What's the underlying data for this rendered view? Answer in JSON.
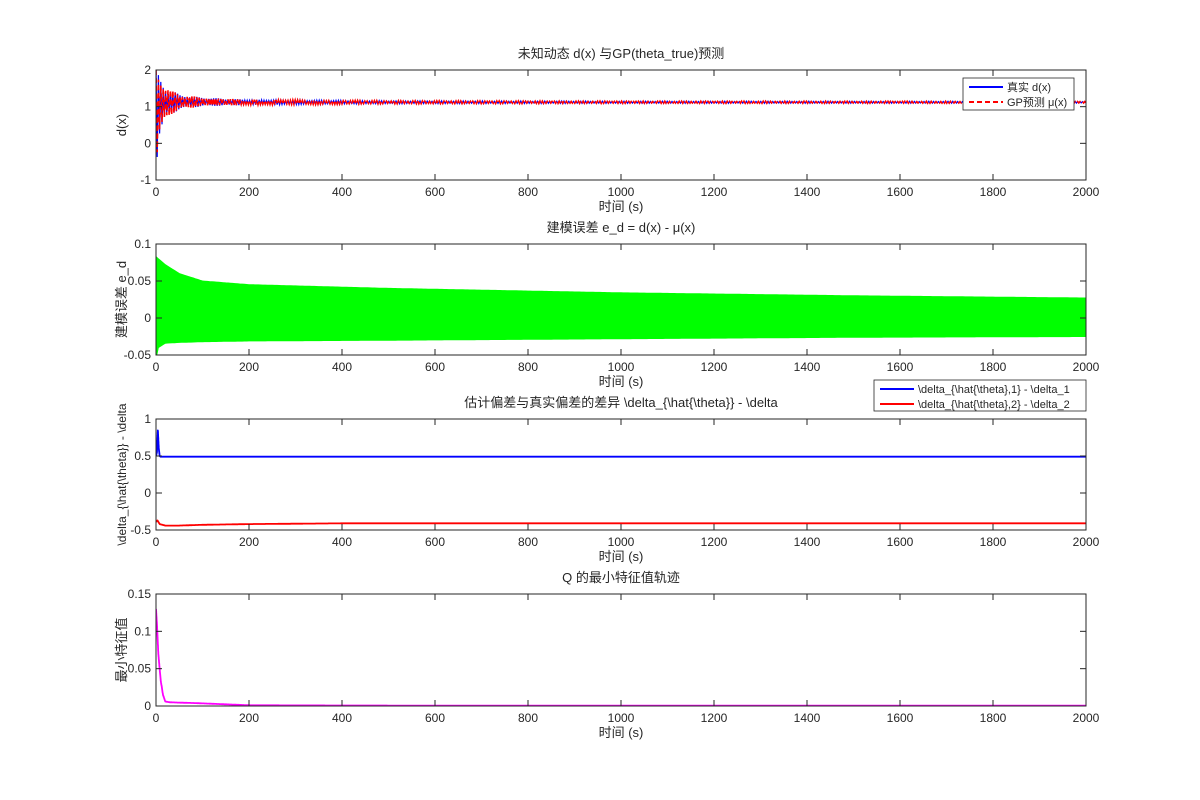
{
  "figure": {
    "background": "#ffffff",
    "axis_color": "#262626"
  },
  "chart_data": [
    {
      "type": "line",
      "title": "未知动态 d(x) 与GP(theta_true)预测",
      "xlabel": "时间 (s)",
      "ylabel": "d(x)",
      "xlim": [
        0,
        2000
      ],
      "ylim": [
        -1,
        2
      ],
      "xticks": [
        0,
        200,
        400,
        600,
        800,
        1000,
        1200,
        1400,
        1600,
        1800,
        2000
      ],
      "yticks": [
        -1,
        0,
        1,
        2
      ],
      "legend": {
        "position": "top-right",
        "entries": [
          "真实 d(x)",
          "GP预测 μ(x)"
        ]
      },
      "series": [
        {
          "name": "真实 d(x)",
          "color": "#0000ff",
          "style": "solid",
          "kind": "oscillation",
          "x": [
            0,
            5,
            20,
            50,
            100,
            200,
            500,
            1000,
            2000
          ],
          "center": [
            0.6,
            1.0,
            1.1,
            1.13,
            1.13,
            1.12,
            1.12,
            1.12,
            1.12
          ],
          "amplitude": [
            1.5,
            0.9,
            0.45,
            0.2,
            0.12,
            0.07,
            0.04,
            0.03,
            0.025
          ]
        },
        {
          "name": "GP预测 μ(x)",
          "color": "#ff0000",
          "style": "dashed",
          "kind": "oscillation",
          "x": [
            0,
            5,
            20,
            50,
            100,
            200,
            500,
            1000,
            2000
          ],
          "center": [
            0.6,
            1.0,
            1.1,
            1.13,
            1.13,
            1.12,
            1.12,
            1.12,
            1.12
          ],
          "amplitude": [
            1.5,
            0.9,
            0.45,
            0.2,
            0.12,
            0.07,
            0.04,
            0.03,
            0.025
          ]
        }
      ]
    },
    {
      "type": "area",
      "title": "建模误差 e_d = d(x) - μ(x)",
      "xlabel": "时间 (s)",
      "ylabel": "建模误差 e_d",
      "xlim": [
        0,
        2000
      ],
      "ylim": [
        -0.05,
        0.1
      ],
      "xticks": [
        0,
        200,
        400,
        600,
        800,
        1000,
        1200,
        1400,
        1600,
        1800,
        2000
      ],
      "yticks": [
        -0.05,
        0,
        0.05,
        0.1
      ],
      "series": [
        {
          "color": "#00ff00",
          "kind": "band",
          "x": [
            0,
            5,
            20,
            50,
            100,
            200,
            500,
            1000,
            1500,
            2000
          ],
          "upper": [
            0.083,
            0.08,
            0.072,
            0.06,
            0.05,
            0.045,
            0.04,
            0.034,
            0.03,
            0.027
          ],
          "lower": [
            -0.055,
            -0.04,
            -0.034,
            -0.033,
            -0.032,
            -0.031,
            -0.03,
            -0.028,
            -0.026,
            -0.025
          ]
        }
      ]
    },
    {
      "type": "line",
      "title": "估计偏差与真实偏差的差异 \\delta_{\\hat{\\theta}} - \\delta",
      "xlabel": "时间 (s)",
      "ylabel": "\\delta_{\\hat{\\theta}} - \\delta",
      "xlim": [
        0,
        2000
      ],
      "ylim": [
        -0.5,
        1
      ],
      "xticks": [
        0,
        200,
        400,
        600,
        800,
        1000,
        1200,
        1400,
        1600,
        1800,
        2000
      ],
      "yticks": [
        -0.5,
        0,
        0.5,
        1
      ],
      "legend": {
        "position": "outside-top-right",
        "entries": [
          "\\delta_{\\hat{\\theta},1} - \\delta_1",
          "\\delta_{\\hat{\\theta},2} - \\delta_2"
        ]
      },
      "series": [
        {
          "name": "\\delta_{\\hat{\\theta},1} - \\delta_1",
          "color": "#0000ff",
          "style": "solid",
          "kind": "line",
          "x": [
            0,
            2,
            4,
            6,
            8,
            10,
            30,
            100,
            500,
            1000,
            2000
          ],
          "y": [
            0.5,
            0.55,
            0.85,
            0.6,
            0.5,
            0.49,
            0.49,
            0.49,
            0.49,
            0.49,
            0.49
          ]
        },
        {
          "name": "\\delta_{\\hat{\\theta},2} - \\delta_2",
          "color": "#ff0000",
          "style": "solid",
          "kind": "line",
          "x": [
            0,
            3,
            8,
            20,
            50,
            100,
            200,
            400,
            800,
            1200,
            2000
          ],
          "y": [
            -0.39,
            -0.37,
            -0.42,
            -0.44,
            -0.44,
            -0.43,
            -0.42,
            -0.41,
            -0.41,
            -0.41,
            -0.41
          ]
        }
      ]
    },
    {
      "type": "line",
      "title": "Q 的最小特征值轨迹",
      "xlabel": "时间 (s)",
      "ylabel": "最小特征值",
      "xlim": [
        0,
        2000
      ],
      "ylim": [
        0,
        0.15
      ],
      "xticks": [
        0,
        200,
        400,
        600,
        800,
        1000,
        1200,
        1400,
        1600,
        1800,
        2000
      ],
      "yticks": [
        0,
        0.05,
        0.1,
        0.15
      ],
      "series": [
        {
          "color": "#ff00ff",
          "style": "solid",
          "kind": "line",
          "x": [
            0,
            2,
            5,
            10,
            15,
            20,
            30,
            50,
            80,
            120,
            200,
            300,
            500,
            1000,
            2000
          ],
          "y": [
            0.13,
            0.11,
            0.07,
            0.035,
            0.015,
            0.006,
            0.005,
            0.0045,
            0.004,
            0.003,
            0.001,
            0.0008,
            0.0006,
            0.0005,
            0.0004
          ]
        }
      ]
    }
  ]
}
